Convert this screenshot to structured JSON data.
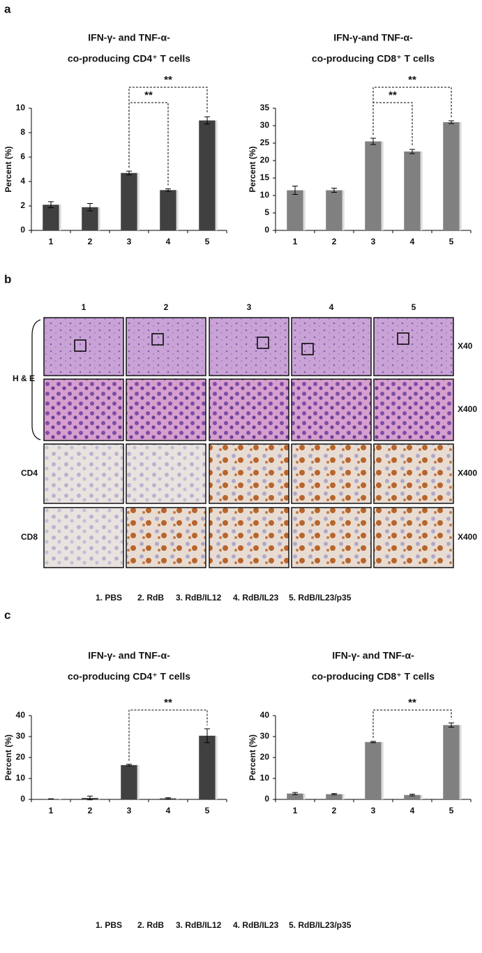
{
  "panel_labels": [
    "a",
    "b",
    "c"
  ],
  "legend": [
    "1. PBS",
    "2. RdB",
    "3. RdB/IL12",
    "4. RdB/IL23",
    "5. RdB/IL23/p35"
  ],
  "histology": {
    "columns": [
      "1",
      "2",
      "3",
      "4",
      "5"
    ],
    "rows": [
      {
        "label": "H & E",
        "magnification": "X40"
      },
      {
        "magnification": "X400"
      },
      {
        "label": "CD4",
        "magnification": "X400"
      },
      {
        "label": "CD8",
        "magnification": "X400"
      }
    ]
  },
  "chart_data": [
    {
      "type": "bar",
      "title": [
        "IFN-γ- and TNF-α-",
        "co-producing CD4⁺ T cells"
      ],
      "y_label": "Percent (%)",
      "categories": [
        "1",
        "2",
        "3",
        "4",
        "5"
      ],
      "values": [
        2.1,
        1.9,
        4.7,
        3.3,
        9.0
      ],
      "errors": [
        0.25,
        0.3,
        0.15,
        0.1,
        0.3
      ],
      "color": "#404040",
      "ylim": [
        0,
        10
      ],
      "yticks": [
        0,
        2,
        4,
        6,
        8,
        10
      ],
      "annotations": [
        {
          "text": "**",
          "between": [
            "3",
            "4"
          ]
        },
        {
          "text": "**",
          "between": [
            "3",
            "5"
          ]
        }
      ]
    },
    {
      "type": "bar",
      "title": [
        "IFN-γ-and TNF-α-",
        "co-producing CD8⁺ T cells"
      ],
      "y_label": "Percent (%)",
      "categories": [
        "1",
        "2",
        "3",
        "4",
        "5"
      ],
      "values": [
        11.5,
        11.5,
        25.5,
        22.6,
        31.0
      ],
      "errors": [
        1.2,
        0.6,
        0.9,
        0.6,
        0.4
      ],
      "color": "#808080",
      "ylim": [
        0,
        35
      ],
      "yticks": [
        0,
        5,
        10,
        15,
        20,
        25,
        30,
        35
      ],
      "annotations": [
        {
          "text": "**",
          "between": [
            "3",
            "4"
          ]
        },
        {
          "text": "**",
          "between": [
            "3",
            "5"
          ]
        }
      ]
    },
    {
      "type": "bar",
      "title": [
        "IFN-γ- and TNF-α-",
        "co-producing CD4⁺ T cells"
      ],
      "y_label": "Percent (%)",
      "categories": [
        "1",
        "2",
        "3",
        "4",
        "5"
      ],
      "values": [
        0.2,
        0.7,
        16.4,
        0.5,
        30.4
      ],
      "errors": [
        0.1,
        0.9,
        0.4,
        0.3,
        3.3
      ],
      "color": "#404040",
      "ylim": [
        0,
        40
      ],
      "yticks": [
        0,
        10,
        20,
        30,
        40
      ],
      "annotations": [
        {
          "text": "**",
          "between": [
            "3",
            "5"
          ]
        }
      ]
    },
    {
      "type": "bar",
      "title": [
        "IFN-γ- and TNF-α-",
        "co-producing CD8⁺ T cells"
      ],
      "y_label": "Percent (%)",
      "categories": [
        "1",
        "2",
        "3",
        "4",
        "5"
      ],
      "values": [
        2.8,
        2.5,
        27.4,
        2.1,
        35.5
      ],
      "errors": [
        0.5,
        0.3,
        0.3,
        0.4,
        1.0
      ],
      "color": "#808080",
      "ylim": [
        0,
        40
      ],
      "yticks": [
        0,
        10,
        20,
        30,
        40
      ],
      "annotations": [
        {
          "text": "**",
          "between": [
            "3",
            "5"
          ]
        }
      ]
    }
  ]
}
